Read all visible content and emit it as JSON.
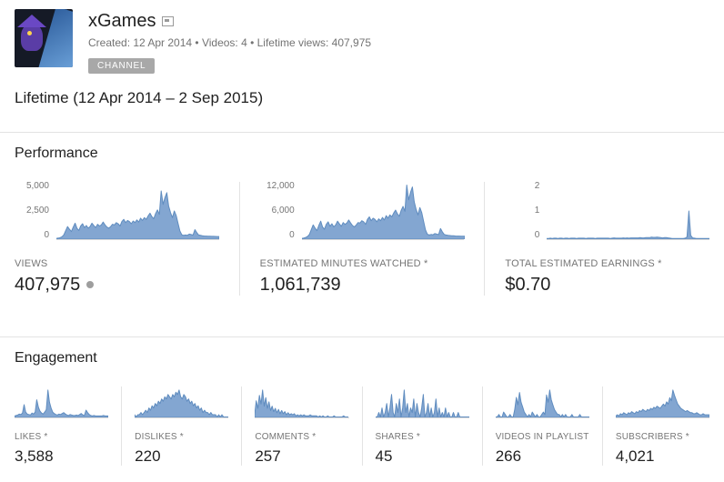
{
  "header": {
    "title": "xGames",
    "meta": "Created: 12 Apr 2014 • Videos: 4 • Lifetime views: 407,975",
    "badge": "CHANNEL"
  },
  "period": "Lifetime (12 Apr 2014 – 2 Sep 2015)",
  "colors": {
    "spark_fill": "#83a6d1",
    "spark_stroke": "#5f8cbf",
    "divider": "#e3e3e3"
  },
  "sections": {
    "performance": {
      "title": "Performance",
      "cards": [
        {
          "label": "VIEWS",
          "value": "407,975",
          "yticks": [
            "5,000",
            "2,500",
            "0"
          ]
        },
        {
          "label": "ESTIMATED MINUTES WATCHED *",
          "value": "1,061,739",
          "yticks": [
            "12,000",
            "6,000",
            "0"
          ]
        },
        {
          "label": "TOTAL ESTIMATED EARNINGS *",
          "value": "$0.70",
          "yticks": [
            "2",
            "1",
            "0"
          ]
        }
      ]
    },
    "engagement": {
      "title": "Engagement",
      "cards": [
        {
          "label": "LIKES *",
          "value": "3,588"
        },
        {
          "label": "DISLIKES *",
          "value": "220"
        },
        {
          "label": "COMMENTS *",
          "value": "257"
        },
        {
          "label": "SHARES *",
          "value": "45"
        },
        {
          "label": "VIDEOS IN PLAYLISTS *",
          "value": "266"
        },
        {
          "label": "SUBSCRIBERS *",
          "value": "4,021"
        }
      ]
    }
  },
  "chart_data": [
    {
      "type": "area",
      "title": "Views",
      "ylim": [
        0,
        5000
      ],
      "yticks": [
        0,
        2500,
        5000
      ],
      "values": [
        30,
        60,
        100,
        180,
        350,
        750,
        1100,
        850,
        650,
        1050,
        1400,
        950,
        750,
        1150,
        1350,
        1000,
        1200,
        950,
        1100,
        1400,
        1200,
        1000,
        1300,
        1150,
        1250,
        1500,
        1250,
        1050,
        950,
        1100,
        1300,
        1250,
        1450,
        1350,
        1150,
        1550,
        1750,
        1450,
        1650,
        1550,
        1350,
        1600,
        1450,
        1700,
        1500,
        1850,
        1650,
        1900,
        1750,
        2050,
        2300,
        2000,
        1800,
        2250,
        2600,
        2200,
        4300,
        3100,
        3700,
        4150,
        2950,
        2350,
        1900,
        2500,
        2100,
        1400,
        700,
        360,
        300,
        340,
        310,
        420,
        380,
        330,
        820,
        560,
        340,
        300,
        270,
        250,
        240,
        230,
        220,
        215,
        210,
        205,
        200,
        195
      ]
    },
    {
      "type": "area",
      "title": "Estimated minutes watched",
      "ylim": [
        0,
        12000
      ],
      "yticks": [
        0,
        6000,
        12000
      ],
      "values": [
        80,
        160,
        270,
        490,
        950,
        2000,
        3000,
        2300,
        1750,
        2850,
        3800,
        2550,
        2050,
        3100,
        3650,
        2700,
        3250,
        2550,
        3000,
        3800,
        3250,
        2700,
        3500,
        3100,
        3400,
        4050,
        3400,
        2850,
        2550,
        3000,
        3500,
        3400,
        3900,
        3650,
        3100,
        4200,
        4750,
        3900,
        4450,
        4200,
        3650,
        4300,
        3900,
        4600,
        4050,
        5000,
        4450,
        5150,
        4750,
        5550,
        6200,
        5400,
        4850,
        6100,
        7000,
        5950,
        11600,
        8400,
        10000,
        11200,
        8000,
        6350,
        5150,
        6750,
        5650,
        3800,
        1900,
        970,
        810,
        920,
        840,
        1130,
        1030,
        890,
        2200,
        1500,
        920,
        810,
        730,
        680,
        650,
        620,
        590,
        580,
        570,
        550,
        540,
        530
      ]
    },
    {
      "type": "area",
      "title": "Total estimated earnings",
      "ylim": [
        0,
        2
      ],
      "yticks": [
        0,
        1,
        2
      ],
      "values": [
        0.01,
        0.01,
        0.02,
        0.01,
        0.02,
        0.02,
        0.01,
        0.02,
        0.02,
        0.01,
        0.02,
        0.02,
        0.01,
        0.02,
        0.02,
        0.02,
        0.01,
        0.02,
        0.02,
        0.02,
        0.02,
        0.01,
        0.02,
        0.02,
        0.02,
        0.02,
        0.01,
        0.02,
        0.02,
        0.02,
        0.02,
        0.02,
        0.02,
        0.02,
        0.01,
        0.02,
        0.03,
        0.02,
        0.02,
        0.02,
        0.02,
        0.03,
        0.02,
        0.03,
        0.02,
        0.03,
        0.03,
        0.03,
        0.03,
        0.03,
        0.04,
        0.03,
        0.03,
        0.04,
        0.04,
        0.04,
        0.06,
        0.05,
        0.05,
        0.06,
        0.05,
        0.04,
        0.03,
        0.04,
        0.04,
        0.03,
        0.02,
        0.01,
        0.01,
        0.01,
        0.01,
        0.01,
        0.01,
        0.01,
        0.02,
        0.06,
        1.0,
        0.12,
        0.03,
        0.02,
        0.01,
        0.01,
        0.01,
        0.01,
        0.01,
        0.01,
        0.01,
        0.01
      ]
    },
    {
      "type": "area",
      "title": "Likes",
      "values": [
        2,
        3,
        4,
        6,
        5,
        8,
        25,
        10,
        6,
        5,
        4,
        8,
        6,
        10,
        35,
        20,
        12,
        8,
        6,
        10,
        15,
        55,
        30,
        18,
        10,
        7,
        5,
        4,
        6,
        5,
        7,
        9,
        6,
        4,
        3,
        5,
        4,
        3,
        3,
        4,
        3,
        5,
        7,
        4,
        3,
        14,
        9,
        5,
        3,
        2,
        3,
        2,
        2,
        2,
        2,
        2,
        3,
        2,
        2,
        2
      ]
    },
    {
      "type": "area",
      "title": "Dislikes",
      "values": [
        1,
        0,
        1,
        1,
        2,
        1,
        2,
        3,
        2,
        4,
        3,
        5,
        4,
        6,
        5,
        7,
        6,
        8,
        7,
        9,
        8,
        10,
        9,
        8,
        10,
        9,
        11,
        10,
        12,
        9,
        8,
        10,
        9,
        7,
        8,
        6,
        7,
        5,
        6,
        4,
        5,
        3,
        4,
        2,
        3,
        2,
        2,
        1,
        2,
        1,
        1,
        1,
        0,
        1,
        0,
        1,
        0,
        0,
        0,
        0
      ]
    },
    {
      "type": "area",
      "title": "Comments",
      "values": [
        2,
        15,
        8,
        20,
        12,
        25,
        10,
        18,
        8,
        14,
        6,
        10,
        5,
        8,
        4,
        7,
        3,
        6,
        3,
        5,
        2,
        4,
        2,
        3,
        2,
        3,
        1,
        2,
        1,
        2,
        1,
        2,
        1,
        1,
        1,
        2,
        1,
        1,
        1,
        1,
        0,
        1,
        0,
        1,
        0,
        0,
        1,
        0,
        0,
        0,
        1,
        0,
        0,
        0,
        0,
        0,
        1,
        0,
        0,
        0
      ]
    },
    {
      "type": "area",
      "title": "Shares",
      "values": [
        0,
        0,
        1,
        0,
        2,
        0,
        1,
        3,
        0,
        2,
        5,
        1,
        0,
        3,
        1,
        4,
        0,
        2,
        6,
        1,
        3,
        0,
        2,
        1,
        4,
        0,
        3,
        1,
        0,
        2,
        5,
        0,
        1,
        3,
        0,
        2,
        0,
        1,
        4,
        0,
        2,
        0,
        1,
        0,
        2,
        0,
        1,
        0,
        0,
        1,
        0,
        0,
        1,
        0,
        0,
        0,
        0,
        0,
        0,
        0
      ]
    },
    {
      "type": "area",
      "title": "Videos in playlists",
      "values": [
        0,
        0,
        1,
        0,
        0,
        2,
        1,
        0,
        0,
        1,
        0,
        0,
        3,
        8,
        5,
        10,
        6,
        4,
        2,
        1,
        0,
        1,
        0,
        2,
        1,
        0,
        1,
        0,
        0,
        1,
        2,
        1,
        9,
        6,
        11,
        7,
        5,
        3,
        2,
        1,
        1,
        0,
        1,
        0,
        1,
        0,
        0,
        0,
        1,
        0,
        0,
        0,
        0,
        1,
        0,
        0,
        0,
        0,
        0,
        0
      ]
    },
    {
      "type": "area",
      "title": "Subscribers",
      "values": [
        1,
        2,
        1,
        3,
        2,
        4,
        3,
        2,
        4,
        3,
        5,
        4,
        3,
        5,
        4,
        6,
        5,
        7,
        6,
        5,
        7,
        6,
        8,
        7,
        9,
        8,
        10,
        9,
        8,
        10,
        12,
        10,
        14,
        12,
        18,
        15,
        25,
        20,
        16,
        12,
        10,
        8,
        7,
        6,
        5,
        6,
        5,
        4,
        4,
        3,
        3,
        4,
        3,
        2,
        2,
        3,
        2,
        2,
        2,
        2
      ]
    }
  ]
}
